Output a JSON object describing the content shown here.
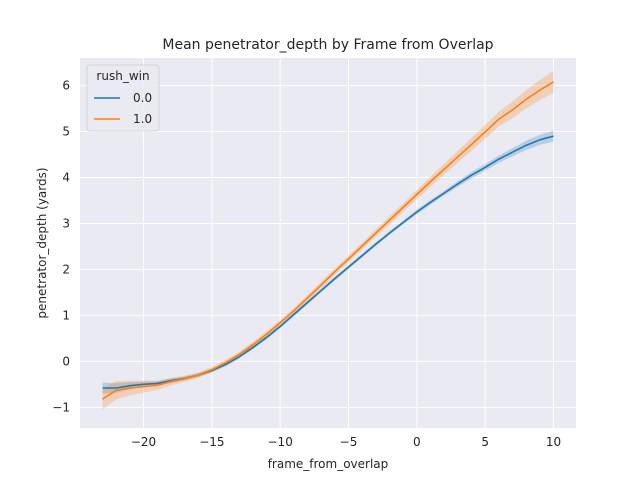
{
  "chart_data": {
    "type": "line",
    "title": "Mean penetrator_depth by Frame from Overlap",
    "xlabel": "frame_from_overlap",
    "ylabel": "penetrator_depth (yards)",
    "xlim": [
      -24.65,
      11.65
    ],
    "ylim": [
      -1.45,
      6.6
    ],
    "xticks": [
      -20,
      -15,
      -10,
      -5,
      0,
      5,
      10
    ],
    "yticks": [
      -1,
      0,
      1,
      2,
      3,
      4,
      5,
      6
    ],
    "grid": true,
    "legend": {
      "title": "rush_win",
      "placement": "top-left"
    },
    "x": [
      -23,
      -22,
      -21,
      -20,
      -19,
      -18,
      -17,
      -16,
      -15,
      -14,
      -13,
      -12,
      -11,
      -10,
      -9,
      -8,
      -7,
      -6,
      -5,
      -4,
      -3,
      -2,
      -1,
      0,
      1,
      2,
      3,
      4,
      5,
      6,
      7,
      8,
      9,
      10
    ],
    "series": [
      {
        "name": "0.0",
        "color": "#1f77b4",
        "values": [
          -0.58,
          -0.58,
          -0.53,
          -0.5,
          -0.48,
          -0.42,
          -0.37,
          -0.3,
          -0.2,
          -0.07,
          0.1,
          0.3,
          0.52,
          0.76,
          1.02,
          1.28,
          1.54,
          1.8,
          2.05,
          2.3,
          2.55,
          2.79,
          3.02,
          3.25,
          3.46,
          3.66,
          3.86,
          4.05,
          4.22,
          4.4,
          4.55,
          4.7,
          4.82,
          4.9
        ],
        "ci_low": [
          -0.7,
          -0.68,
          -0.61,
          -0.56,
          -0.53,
          -0.47,
          -0.41,
          -0.34,
          -0.24,
          -0.11,
          0.06,
          0.26,
          0.48,
          0.72,
          0.98,
          1.24,
          1.5,
          1.76,
          2.01,
          2.26,
          2.51,
          2.75,
          2.98,
          3.2,
          3.41,
          3.61,
          3.8,
          3.98,
          4.15,
          4.32,
          4.46,
          4.6,
          4.71,
          4.78
        ],
        "ci_high": [
          -0.46,
          -0.48,
          -0.45,
          -0.44,
          -0.43,
          -0.37,
          -0.33,
          -0.26,
          -0.16,
          -0.03,
          0.14,
          0.34,
          0.56,
          0.8,
          1.06,
          1.32,
          1.58,
          1.84,
          2.09,
          2.34,
          2.59,
          2.83,
          3.06,
          3.3,
          3.51,
          3.71,
          3.92,
          4.12,
          4.29,
          4.48,
          4.64,
          4.8,
          4.93,
          5.02
        ]
      },
      {
        "name": "1.0",
        "color": "#ff7f0e",
        "values": [
          -0.82,
          -0.63,
          -0.58,
          -0.55,
          -0.52,
          -0.44,
          -0.38,
          -0.3,
          -0.18,
          -0.03,
          0.15,
          0.36,
          0.59,
          0.84,
          1.1,
          1.38,
          1.66,
          1.95,
          2.23,
          2.51,
          2.79,
          3.07,
          3.35,
          3.63,
          3.91,
          4.18,
          4.45,
          4.72,
          4.99,
          5.27,
          5.47,
          5.7,
          5.9,
          6.08
        ],
        "ci_low": [
          -1.05,
          -0.83,
          -0.74,
          -0.68,
          -0.62,
          -0.52,
          -0.45,
          -0.36,
          -0.24,
          -0.09,
          0.09,
          0.3,
          0.53,
          0.78,
          1.04,
          1.31,
          1.59,
          1.88,
          2.16,
          2.44,
          2.71,
          2.98,
          3.26,
          3.53,
          3.8,
          4.06,
          4.32,
          4.58,
          4.84,
          5.11,
          5.29,
          5.5,
          5.68,
          5.84
        ],
        "ci_high": [
          -0.59,
          -0.43,
          -0.42,
          -0.42,
          -0.42,
          -0.36,
          -0.31,
          -0.24,
          -0.12,
          0.03,
          0.21,
          0.42,
          0.65,
          0.9,
          1.16,
          1.45,
          1.73,
          2.02,
          2.3,
          2.58,
          2.87,
          3.16,
          3.44,
          3.73,
          4.02,
          4.3,
          4.58,
          4.86,
          5.14,
          5.43,
          5.65,
          5.9,
          6.12,
          6.32
        ]
      }
    ]
  }
}
